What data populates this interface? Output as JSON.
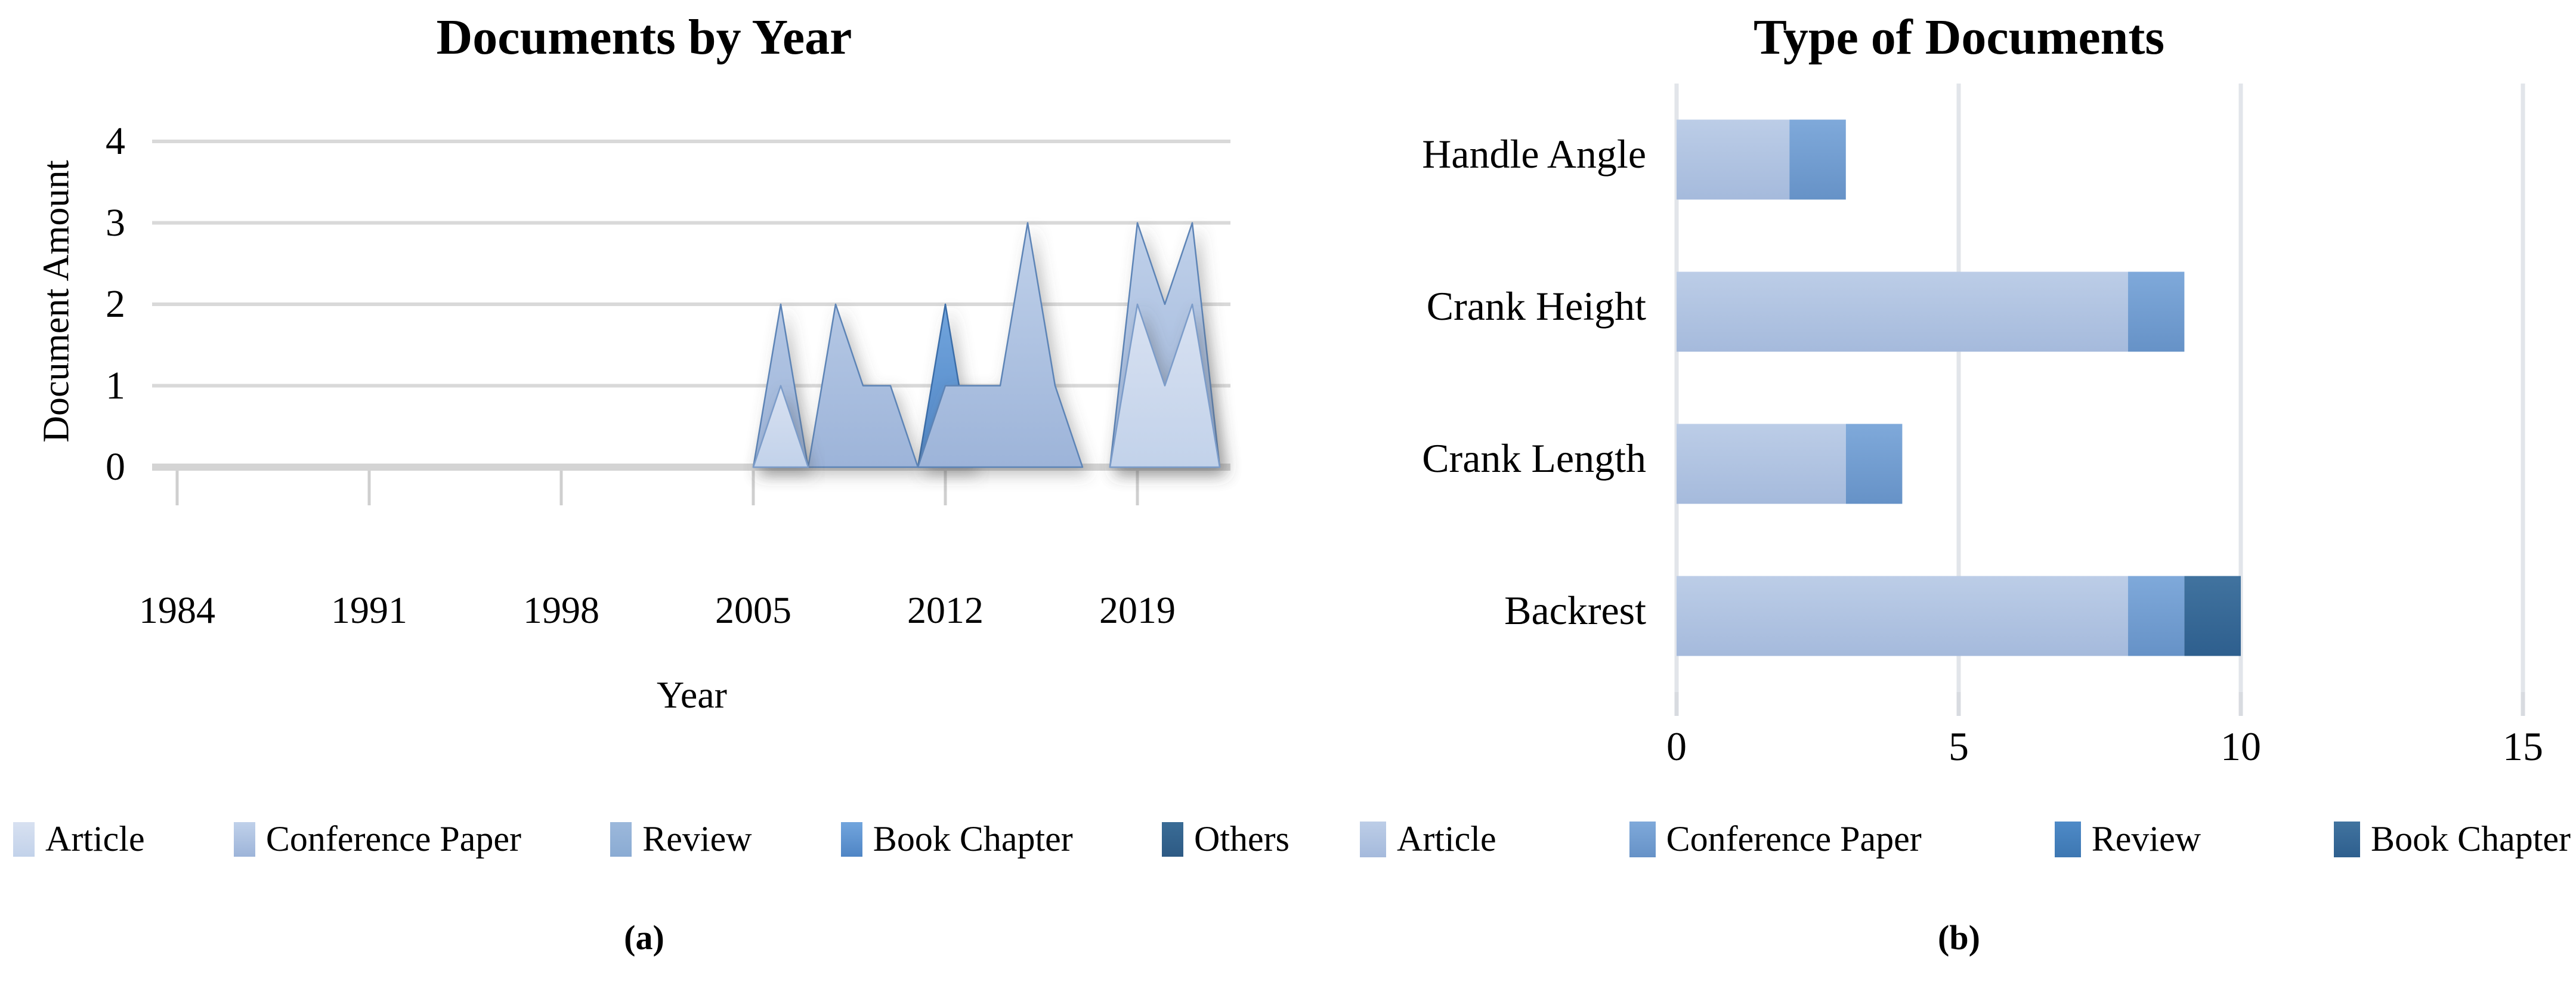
{
  "figure": {
    "caption_a": "(a)",
    "caption_b": "(b)"
  },
  "colors": {
    "gridline_a": "#d9d9d9",
    "axis_band_a": "#d4d4d4",
    "tick_stub_a": "#cfcfcf",
    "gridline_b": "#e2e5ea",
    "tick_stub_b": "#d8dbe0",
    "text": "#000000"
  },
  "chart_data": [
    {
      "type": "area",
      "overlay": true,
      "title": "Documents by Year",
      "xlabel": "Year",
      "ylabel": "Document Amount",
      "x_ticks": [
        1984,
        1991,
        1998,
        2005,
        2012,
        2019
      ],
      "y_ticks": [
        0,
        1,
        2,
        3,
        4
      ],
      "ylim": [
        0,
        4
      ],
      "grid": "horizontal",
      "legend_position": "bottom",
      "series": [
        {
          "name": "Article",
          "color": "#d8e1f1",
          "color2": "#c2d2ea",
          "stroke": "#7b9cc9",
          "points": [
            [
              2005,
              0
            ],
            [
              2006,
              1
            ],
            [
              2007,
              0
            ],
            [
              2018,
              0
            ],
            [
              2019,
              2
            ],
            [
              2020,
              1
            ],
            [
              2021,
              2
            ],
            [
              2022,
              0
            ]
          ]
        },
        {
          "name": "Conference Paper",
          "color": "#c0d1ea",
          "color2": "#9db4d9",
          "stroke": "#5d84b6",
          "points": [
            [
              2005,
              0
            ],
            [
              2006,
              2
            ],
            [
              2007,
              0
            ],
            [
              2008,
              2
            ],
            [
              2009,
              1
            ],
            [
              2010,
              1
            ],
            [
              2011,
              0
            ],
            [
              2012,
              1
            ],
            [
              2013,
              1
            ],
            [
              2014,
              1
            ],
            [
              2015,
              3
            ],
            [
              2016,
              1
            ],
            [
              2017,
              0
            ],
            [
              2018,
              0
            ],
            [
              2019,
              3
            ],
            [
              2020,
              2
            ],
            [
              2021,
              3
            ],
            [
              2022,
              0
            ]
          ]
        },
        {
          "name": "Review",
          "color": "#9cb8db",
          "color2": "#8aabd3",
          "stroke": "#5d84b6",
          "points": []
        },
        {
          "name": "Book Chapter",
          "color": "#72a5dd",
          "color2": "#4f85c5",
          "stroke": "#3a6da8",
          "points": [
            [
              2011,
              0
            ],
            [
              2012,
              2
            ],
            [
              2013,
              0
            ]
          ]
        },
        {
          "name": "Others",
          "color": "#3a6c96",
          "color2": "#2d5a84",
          "stroke": "#24496b",
          "points": []
        }
      ]
    },
    {
      "type": "bar",
      "orientation": "horizontal",
      "title": "Type of Documents",
      "categories": [
        "Handle Angle",
        "Crank Height",
        "Crank Length",
        "Backrest"
      ],
      "x_ticks": [
        0,
        5,
        10,
        15
      ],
      "xlim": [
        0,
        15
      ],
      "grid": "vertical",
      "legend_position": "bottom",
      "series": [
        {
          "name": "Article",
          "color": "#bccde7",
          "color2": "#a5badc",
          "values": [
            2,
            8,
            3,
            8
          ]
        },
        {
          "name": "Conference Paper",
          "color": "#7fa9da",
          "color2": "#6692c7",
          "values": [
            1,
            1,
            1,
            1
          ]
        },
        {
          "name": "Review",
          "color": "#4e8ac7",
          "color2": "#3d77b2",
          "values": [
            0,
            0,
            0,
            0
          ]
        },
        {
          "name": "Book Chapter",
          "color": "#41739f",
          "color2": "#2e5f8e",
          "values": [
            0,
            0,
            0,
            1
          ]
        }
      ],
      "totals": [
        3,
        9,
        4,
        10
      ]
    }
  ]
}
